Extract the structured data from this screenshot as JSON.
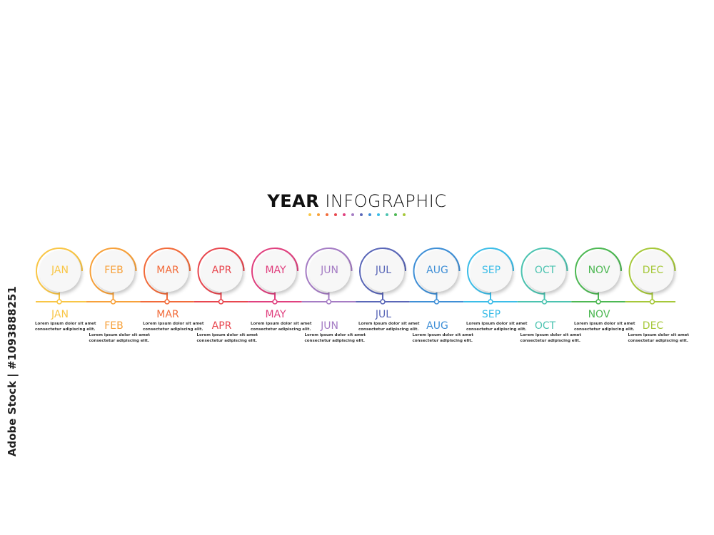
{
  "title": {
    "bold": "YEAR",
    "light": "INFOGRAPHIC"
  },
  "watermark": "Adobe Stock | #1093888251",
  "months": [
    {
      "label": "JAN",
      "color": "#f9c646",
      "line1": "Lorem ipsum dolor sit amet",
      "line2": "consectetur adipiscing elit."
    },
    {
      "label": "FEB",
      "color": "#f7a13a",
      "line1": "Lorem ipsum dolor sit amet",
      "line2": "consectetur adipiscing elit."
    },
    {
      "label": "MAR",
      "color": "#f26b3a",
      "line1": "Lorem ipsum dolor sit amet",
      "line2": "consectetur adipiscing elit."
    },
    {
      "label": "APR",
      "color": "#e8474f",
      "line1": "Lorem ipsum dolor sit amet",
      "line2": "consectetur adipiscing elit."
    },
    {
      "label": "MAY",
      "color": "#e0417f",
      "line1": "Lorem ipsum dolor sit amet",
      "line2": "consectetur adipiscing elit."
    },
    {
      "label": "JUN",
      "color": "#a57cc4",
      "line1": "Lorem ipsum dolor sit amet",
      "line2": "consectetur adipiscing elit."
    },
    {
      "label": "JUL",
      "color": "#5a67b8",
      "line1": "Lorem ipsum dolor sit amet",
      "line2": "consectetur adipiscing elit."
    },
    {
      "label": "AUG",
      "color": "#3f8fd6",
      "line1": "Lorem ipsum dolor sit amet",
      "line2": "consectetur adipiscing elit."
    },
    {
      "label": "SEP",
      "color": "#3cbde8",
      "line1": "Lorem ipsum dolor sit amet",
      "line2": "consectetur adipiscing elit."
    },
    {
      "label": "OCT",
      "color": "#4cc3b0",
      "line1": "Lorem ipsum dolor sit amet",
      "line2": "consectetur adipiscing elit."
    },
    {
      "label": "NOV",
      "color": "#4db853",
      "line1": "Lorem ipsum dolor sit amet",
      "line2": "consectetur adipiscing elit."
    },
    {
      "label": "DEC",
      "color": "#a6c83a",
      "line1": "Lorem ipsum dolor sit amet",
      "line2": "consectetur adipiscing elit."
    }
  ]
}
